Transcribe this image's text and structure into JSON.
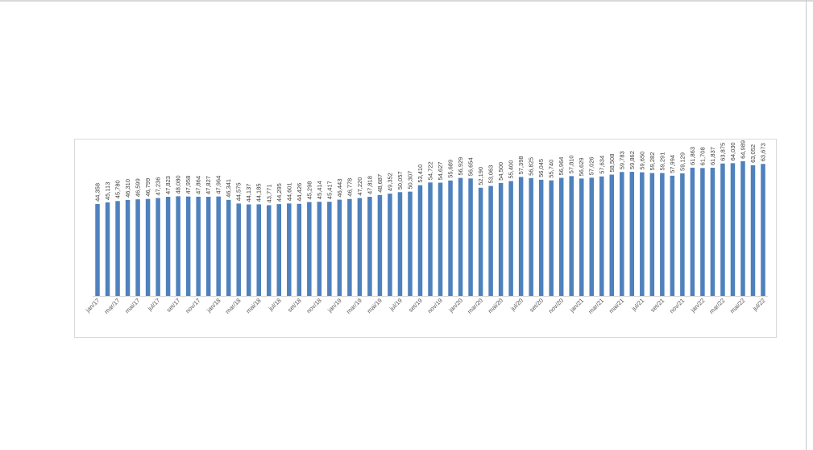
{
  "chart_data": {
    "type": "bar",
    "title": "",
    "xlabel": "",
    "ylabel": "",
    "ylim": [
      0,
      70
    ],
    "grid": false,
    "legend": "none",
    "bar_color": "#4f81bd",
    "categories": [
      "jan/17",
      "fev/17",
      "mar/17",
      "abr/17",
      "mai/17",
      "jun/17",
      "jul/17",
      "ago/17",
      "set/17",
      "out/17",
      "nov/17",
      "dez/17",
      "jan/18",
      "fev/18",
      "mar/18",
      "abr/18",
      "mai/18",
      "jun/18",
      "jul/18",
      "ago/18",
      "set/18",
      "out/18",
      "nov/18",
      "dez/18",
      "jan/19",
      "fev/19",
      "mar/19",
      "abr/19",
      "mai/19",
      "jun/19",
      "jul/19",
      "ago/19",
      "set/19",
      "out/19",
      "nov/19",
      "dez/19",
      "jan/20",
      "fev/20",
      "mar/20",
      "abr/20",
      "mai/20",
      "jun/20",
      "jul/20",
      "ago/20",
      "set/20",
      "out/20",
      "nov/20",
      "dez/20",
      "jan/21",
      "fev/21",
      "mar/21",
      "abr/21",
      "mai/21",
      "jun/21",
      "jul/21",
      "ago/21",
      "set/21",
      "out/21",
      "nov/21",
      "dez/21",
      "jan/22",
      "fev/22",
      "mar/22",
      "abr/22",
      "mai/22",
      "jun/22",
      "jul/22"
    ],
    "values": [
      44.358,
      45.113,
      45.78,
      46.31,
      46.599,
      46.799,
      47.236,
      47.823,
      48.08,
      47.958,
      47.864,
      47.827,
      47.964,
      46.341,
      44.575,
      44.137,
      44.185,
      43.771,
      44.295,
      44.601,
      44.426,
      45.298,
      45.414,
      45.417,
      46.443,
      46.778,
      47.22,
      47.818,
      48.687,
      49.352,
      50.057,
      50.307,
      53.41,
      54.722,
      54.627,
      55.689,
      56.929,
      56.654,
      52.19,
      53.063,
      54.5,
      55.4,
      57.398,
      56.825,
      56.045,
      55.74,
      56.964,
      57.81,
      56.629,
      57.026,
      57.634,
      58.508,
      59.783,
      59.862,
      59.65,
      59.282,
      59.291,
      57.994,
      59.129,
      61.863,
      61.708,
      61.837,
      63.875,
      64.03,
      64.989,
      63.052,
      63.673
    ],
    "data_labels": [
      "44,358",
      "45,113",
      "45,780",
      "46,310",
      "46,599",
      "46,799",
      "47,236",
      "47,823",
      "48,080",
      "47,958",
      "47,864",
      "47,827",
      "47,964",
      "46,341",
      "44,575",
      "44,137",
      "44,185",
      "43,771",
      "44,295",
      "44,601",
      "44,426",
      "45,298",
      "45,414",
      "45,417",
      "46,443",
      "46,778",
      "47,220",
      "47,818",
      "48,687",
      "49,352",
      "50,057",
      "50,307",
      "53,410",
      "54,722",
      "54,627",
      "55,689",
      "56,929",
      "56,654",
      "52,190",
      "53,063",
      "54,500",
      "55,400",
      "57,398",
      "56,825",
      "56,045",
      "55,740",
      "56,964",
      "57,810",
      "56,629",
      "57,026",
      "57,634",
      "58,508",
      "59,783",
      "59,862",
      "59,650",
      "59,282",
      "59,291",
      "57,994",
      "59,129",
      "61,863",
      "61,708",
      "61,837",
      "63,875",
      "64,030",
      "64,989",
      "63,052",
      "63,673"
    ],
    "x_tick_labels_shown": "every other category"
  }
}
